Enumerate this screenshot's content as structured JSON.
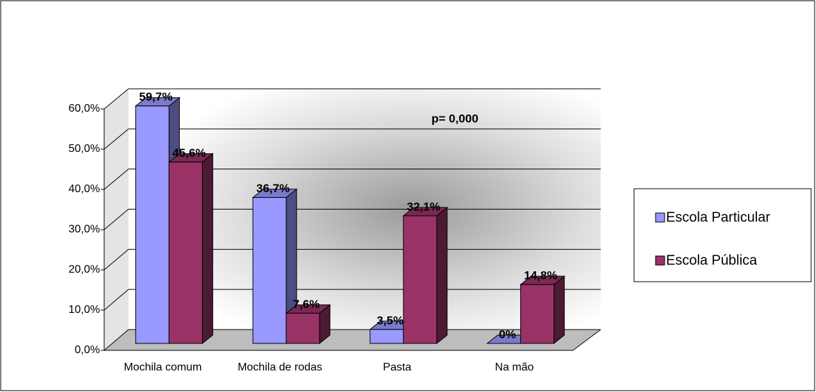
{
  "chart_data": {
    "type": "bar3d",
    "annotations": [
      "p= 0,000"
    ],
    "categories": [
      "Mochila comum",
      "Mochila de rodas",
      "Pasta",
      "Na mão"
    ],
    "series": [
      {
        "name": "Escola Particular",
        "color": "#9999ff",
        "values": [
          59.7,
          36.7,
          3.5,
          0
        ],
        "value_labels": [
          "59,7%",
          "36,7%",
          "3,5%",
          "0%"
        ]
      },
      {
        "name": "Escola Pública",
        "color": "#993366",
        "values": [
          45.6,
          7.6,
          32.1,
          14.8
        ],
        "value_labels": [
          "45,6%",
          "7,6%",
          "32,1%",
          "14,8%"
        ]
      }
    ],
    "ylim": [
      0,
      60
    ],
    "yticks": [
      {
        "value": 0,
        "label": "0,0%"
      },
      {
        "value": 10,
        "label": "10,0%"
      },
      {
        "value": 20,
        "label": "20,0%"
      },
      {
        "value": 30,
        "label": "30,0%"
      },
      {
        "value": 40,
        "label": "40,0%"
      },
      {
        "value": 50,
        "label": "50,0%"
      },
      {
        "value": 60,
        "label": "60,0%"
      }
    ],
    "grid": true,
    "legend": "right"
  }
}
